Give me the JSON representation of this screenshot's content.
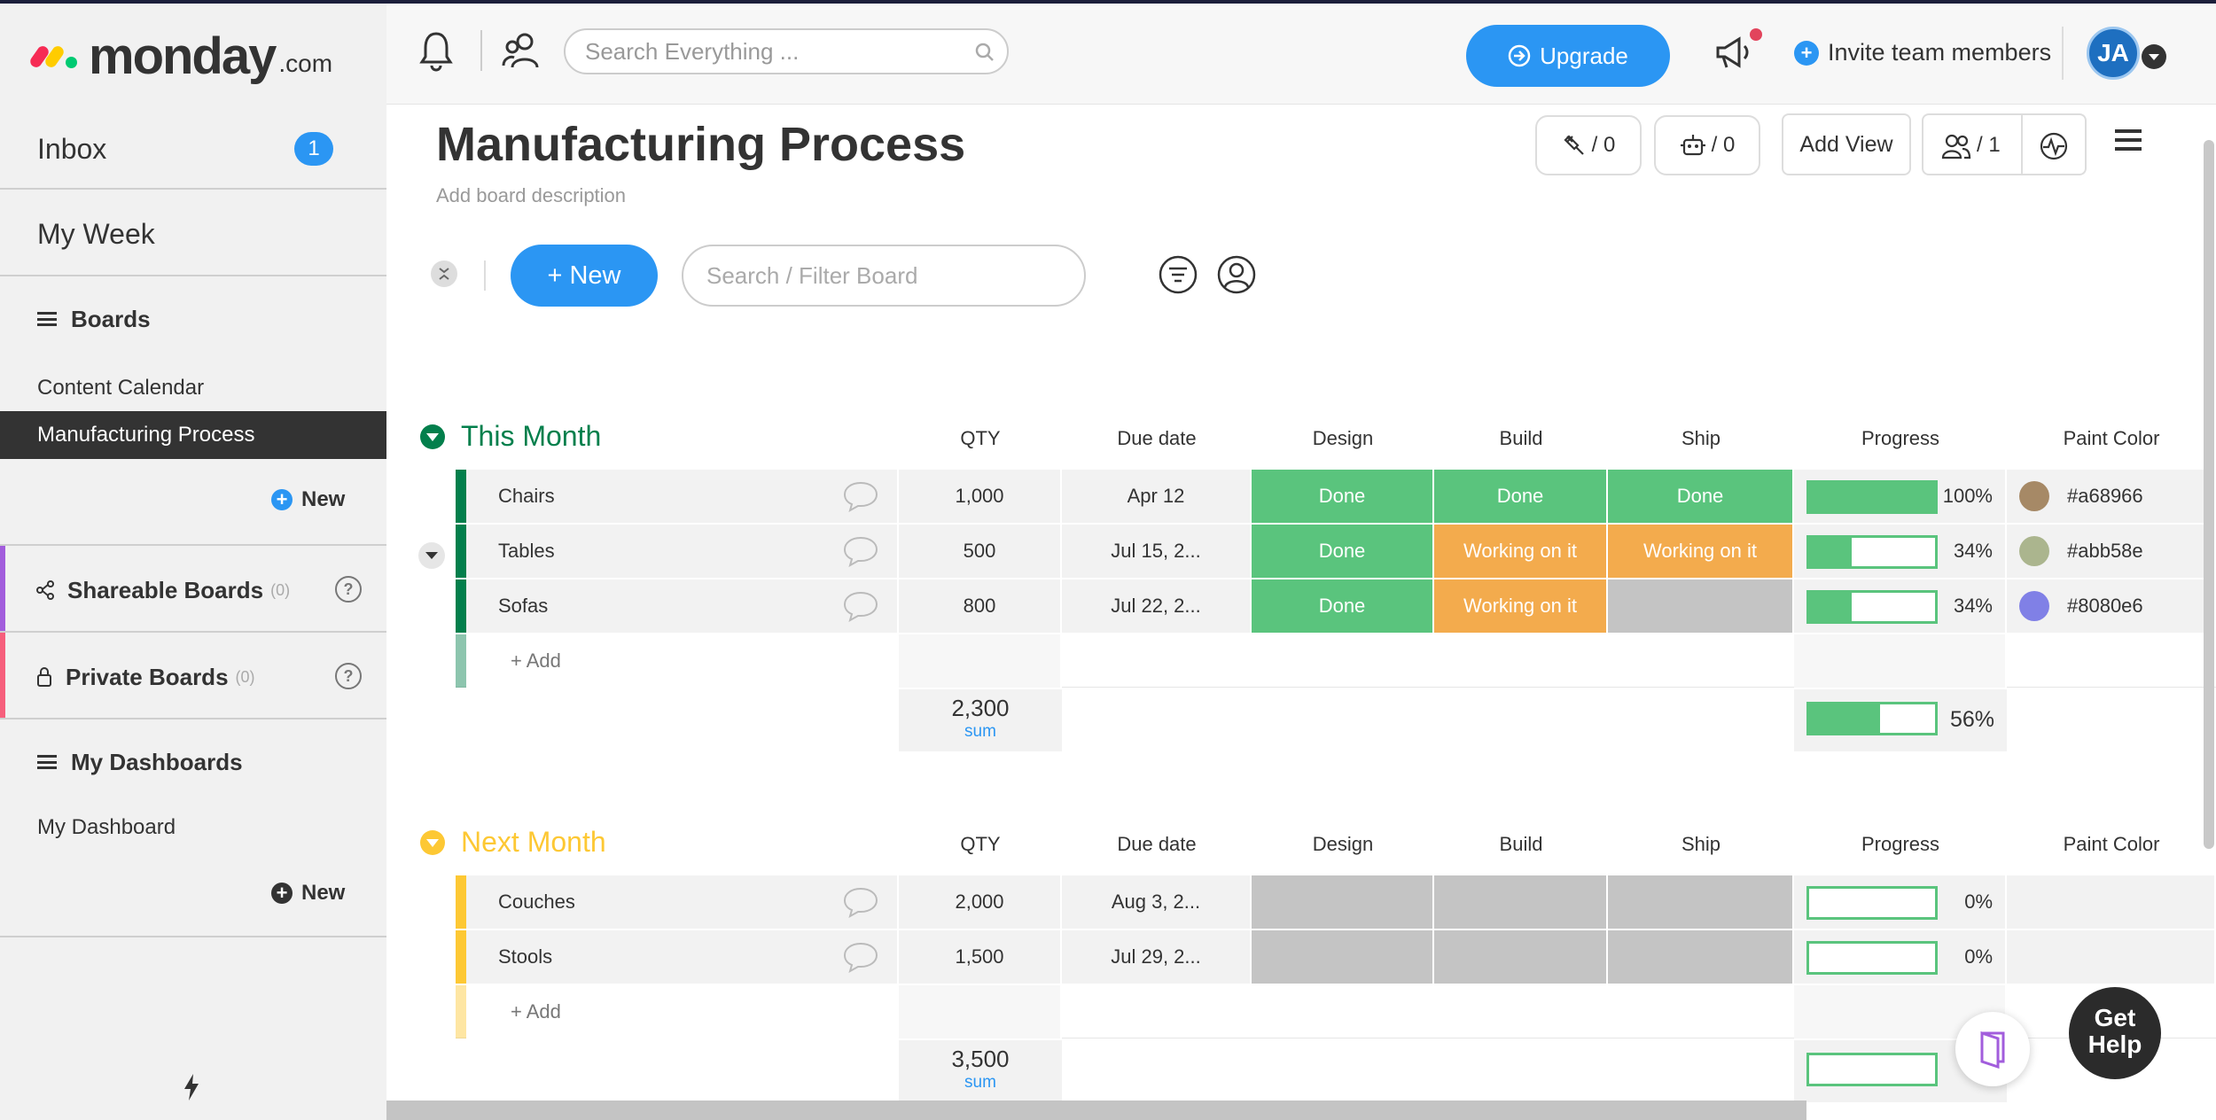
{
  "sidebar": {
    "logo": {
      "word": "monday",
      "suffix": ".com"
    },
    "inbox": {
      "label": "Inbox",
      "count": "1"
    },
    "my_week": "My Week",
    "boards_heading": "Boards",
    "boards": [
      "Content Calendar",
      "Manufacturing Process"
    ],
    "new_board_label": "New",
    "shareable": {
      "label": "Shareable Boards",
      "count": "(0)"
    },
    "private": {
      "label": "Private Boards",
      "count": "(0)"
    },
    "dashboards_heading": "My Dashboards",
    "dashboards": [
      "My Dashboard"
    ],
    "new_dashboard_label": "New"
  },
  "topbar": {
    "search_placeholder": "Search Everything ...",
    "upgrade_label": "Upgrade",
    "invite_label": "Invite team members",
    "avatar_initials": "JA"
  },
  "board": {
    "title": "Manufacturing Process",
    "description": "Add board description",
    "integrations_count": "/ 0",
    "automations_count": "/ 0",
    "add_view_label": "Add View",
    "members_count": "/ 1",
    "new_item_label": "+ New",
    "filter_placeholder": "Search / Filter Board"
  },
  "columns": [
    "QTY",
    "Due date",
    "Design",
    "Build",
    "Ship",
    "Progress",
    "Paint Color"
  ],
  "groups": [
    {
      "title": "This Month",
      "color": "#037f4c",
      "rows": [
        {
          "name": "Chairs",
          "qty": "1,000",
          "due": "Apr 12",
          "design": "Done",
          "build": "Done",
          "ship": "Done",
          "progress": 100,
          "progress_label": "100%",
          "paint_hex": "#a68966"
        },
        {
          "name": "Tables",
          "qty": "500",
          "due": "Jul 15, 2...",
          "design": "Done",
          "build": "Working on it",
          "ship": "Working on it",
          "progress": 34,
          "progress_label": "34%",
          "paint_hex": "#abb58e"
        },
        {
          "name": "Sofas",
          "qty": "800",
          "due": "Jul 22, 2...",
          "design": "Done",
          "build": "Working on it",
          "ship": "",
          "progress": 34,
          "progress_label": "34%",
          "paint_hex": "#8080e6"
        }
      ],
      "add_label": "+ Add",
      "qty_sum": "2,300",
      "sum_label": "sum",
      "progress_total": 56,
      "progress_total_label": "56%"
    },
    {
      "title": "Next Month",
      "color": "#fdc834",
      "rows": [
        {
          "name": "Couches",
          "qty": "2,000",
          "due": "Aug 3, 2...",
          "design": "",
          "build": "",
          "ship": "",
          "progress": 0,
          "progress_label": "0%",
          "paint_hex": ""
        },
        {
          "name": "Stools",
          "qty": "1,500",
          "due": "Jul 29, 2...",
          "design": "",
          "build": "",
          "ship": "",
          "progress": 0,
          "progress_label": "0%",
          "paint_hex": ""
        }
      ],
      "add_label": "+ Add",
      "qty_sum": "3,500",
      "sum_label": "sum",
      "progress_total": 0,
      "progress_total_label": ""
    }
  ],
  "help": {
    "line1": "Get",
    "line2": "Help"
  }
}
